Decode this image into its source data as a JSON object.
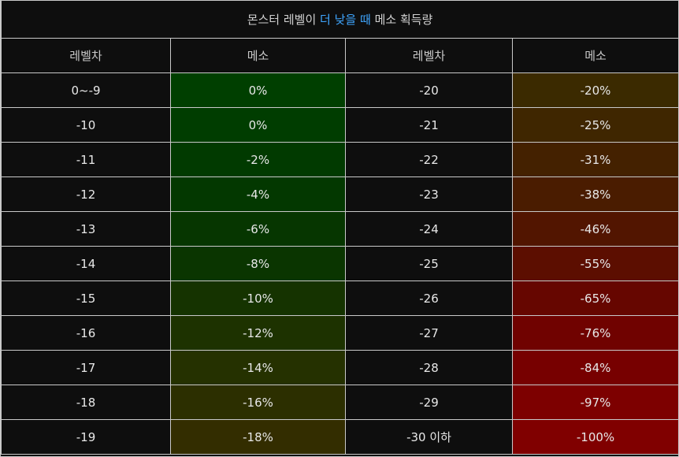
{
  "title": {
    "prefix": "몬스터 레벨이",
    "highlight": "더 낮을 때",
    "suffix": "메소 획득량"
  },
  "headers": [
    "레벨차",
    "메소",
    "레벨차",
    "메소"
  ],
  "colors": {
    "accent": "#3fa6ff",
    "border": "#c9c9c9",
    "background": "#0e0e0e"
  },
  "rows": [
    {
      "left_level": "0~-9",
      "left_meso": "0%",
      "left_color": "#003f00",
      "right_level": "-20",
      "right_meso": "-20%",
      "right_color": "#3b2a00"
    },
    {
      "left_level": "-10",
      "left_meso": "0%",
      "left_color": "#003d00",
      "right_level": "-21",
      "right_meso": "-25%",
      "right_color": "#3f2600"
    },
    {
      "left_level": "-11",
      "left_meso": "-2%",
      "left_color": "#013a00",
      "right_level": "-22",
      "right_meso": "-31%",
      "right_color": "#442100"
    },
    {
      "left_level": "-12",
      "left_meso": "-4%",
      "left_color": "#033800",
      "right_level": "-23",
      "right_meso": "-38%",
      "right_color": "#4a1c00"
    },
    {
      "left_level": "-13",
      "left_meso": "-6%",
      "left_color": "#063600",
      "right_level": "-24",
      "right_meso": "-46%",
      "right_color": "#521500"
    },
    {
      "left_level": "-14",
      "left_meso": "-8%",
      "left_color": "#0a3500",
      "right_level": "-25",
      "right_meso": "-55%",
      "right_color": "#5c0e00"
    },
    {
      "left_level": "-15",
      "left_meso": "-10%",
      "left_color": "#153300",
      "right_level": "-26",
      "right_meso": "-65%",
      "right_color": "#660600"
    },
    {
      "left_level": "-16",
      "left_meso": "-12%",
      "left_color": "#1d3200",
      "right_level": "-27",
      "right_meso": "-76%",
      "right_color": "#700200"
    },
    {
      "left_level": "-17",
      "left_meso": "-14%",
      "left_color": "#253100",
      "right_level": "-28",
      "right_meso": "-84%",
      "right_color": "#770000"
    },
    {
      "left_level": "-18",
      "left_meso": "-16%",
      "left_color": "#2c2f00",
      "right_level": "-29",
      "right_meso": "-97%",
      "right_color": "#7d0000"
    },
    {
      "left_level": "-19",
      "left_meso": "-18%",
      "left_color": "#332d00",
      "right_level": "-30 이하",
      "right_meso": "-100%",
      "right_color": "#800000"
    }
  ]
}
